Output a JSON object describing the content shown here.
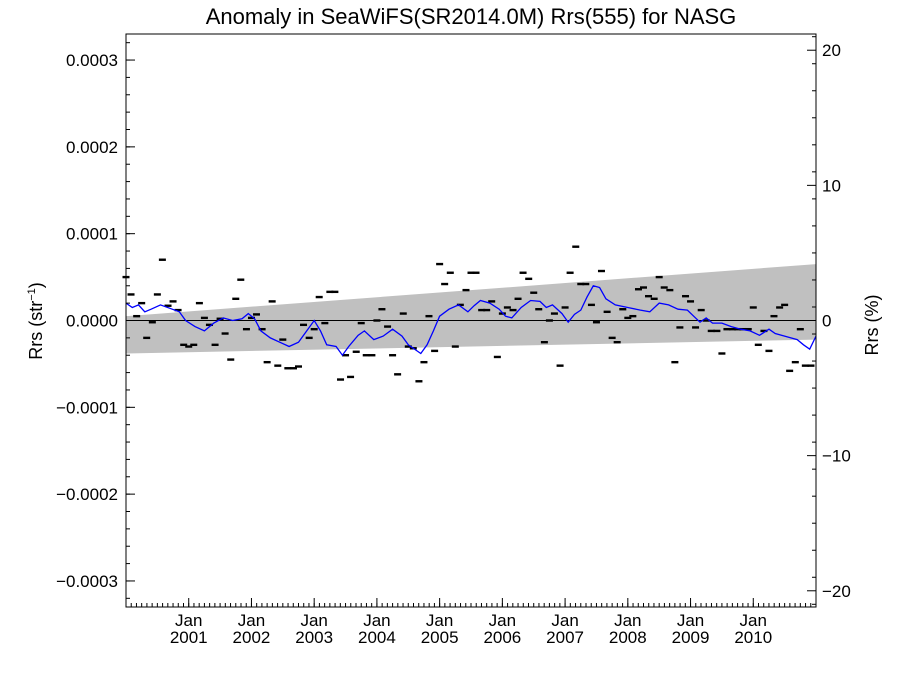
{
  "chart_data": {
    "type": "scatter",
    "title": "Anomaly in SeaWiFS(SR2014.0M) Rrs(555) for NASG",
    "ylabel": "Rrs (str",
    "ylabel_sup": "−1",
    "ylabel_close": ")",
    "y2label": "Rrs (%)",
    "ylim": [
      -0.00033,
      0.00033
    ],
    "y2lim": [
      -21.2,
      21.2
    ],
    "xlim": [
      2000.0,
      2011.0
    ],
    "grid": false,
    "yticks": [
      {
        "v": 0.0003,
        "label": "0.0003"
      },
      {
        "v": 0.0002,
        "label": "0.0002"
      },
      {
        "v": 0.0001,
        "label": "0.0001"
      },
      {
        "v": 0.0,
        "label": "0.0000"
      },
      {
        "v": -0.0001,
        "label": "−0.0001"
      },
      {
        "v": -0.0002,
        "label": "−0.0002"
      },
      {
        "v": -0.0003,
        "label": "−0.0003"
      }
    ],
    "y2ticks": [
      {
        "v": 20,
        "label": "20"
      },
      {
        "v": 10,
        "label": "10"
      },
      {
        "v": 0,
        "label": "0"
      },
      {
        "v": -10,
        "label": "−10"
      },
      {
        "v": -20,
        "label": "−20"
      }
    ],
    "xticks": [
      {
        "t": 2001.0,
        "month": "Jan",
        "year": "2001"
      },
      {
        "t": 2002.0,
        "month": "Jan",
        "year": "2002"
      },
      {
        "t": 2003.0,
        "month": "Jan",
        "year": "2003"
      },
      {
        "t": 2004.0,
        "month": "Jan",
        "year": "2004"
      },
      {
        "t": 2005.0,
        "month": "Jan",
        "year": "2005"
      },
      {
        "t": 2006.0,
        "month": "Jan",
        "year": "2006"
      },
      {
        "t": 2007.0,
        "month": "Jan",
        "year": "2007"
      },
      {
        "t": 2008.0,
        "month": "Jan",
        "year": "2008"
      },
      {
        "t": 2009.0,
        "month": "Jan",
        "year": "2009"
      },
      {
        "t": 2010.0,
        "month": "Jan",
        "year": "2010"
      }
    ],
    "uncertainty_band": {
      "color": "#c0c0c0",
      "upper": [
        [
          2000.0,
          5e-06
        ],
        [
          2011.0,
          6.5e-05
        ]
      ],
      "lower": [
        [
          2000.0,
          -3.8e-05
        ],
        [
          2011.0,
          -2.2e-05
        ]
      ]
    },
    "zero_line": 0.0,
    "series": [
      {
        "kind": "monthly-points",
        "color": "#000000",
        "points": [
          [
            2000.0,
            5e-05
          ],
          [
            2000.08,
            3e-05
          ],
          [
            2000.17,
            5e-06
          ],
          [
            2000.25,
            2e-05
          ],
          [
            2000.33,
            -2e-05
          ],
          [
            2000.42,
            -2e-06
          ],
          [
            2000.5,
            3e-05
          ],
          [
            2000.58,
            7e-05
          ],
          [
            2000.67,
            1.7e-05
          ],
          [
            2000.75,
            2.2e-05
          ],
          [
            2000.83,
            1.2e-05
          ],
          [
            2000.92,
            -2.8e-05
          ],
          [
            2001.0,
            -3e-05
          ],
          [
            2001.08,
            -2.8e-05
          ],
          [
            2001.17,
            2e-05
          ],
          [
            2001.25,
            3e-06
          ],
          [
            2001.33,
            -5e-06
          ],
          [
            2001.42,
            -2.8e-05
          ],
          [
            2001.5,
            2e-06
          ],
          [
            2001.58,
            -1.5e-05
          ],
          [
            2001.67,
            -4.5e-05
          ],
          [
            2001.75,
            2.5e-05
          ],
          [
            2001.83,
            4.7e-05
          ],
          [
            2001.92,
            -1e-05
          ],
          [
            2002.0,
            3e-06
          ],
          [
            2002.08,
            7e-06
          ],
          [
            2002.17,
            -1e-05
          ],
          [
            2002.25,
            -4.8e-05
          ],
          [
            2002.33,
            2.2e-05
          ],
          [
            2002.42,
            -5.2e-05
          ],
          [
            2002.5,
            -2.2e-05
          ],
          [
            2002.58,
            -5.5e-05
          ],
          [
            2002.67,
            -5.5e-05
          ],
          [
            2002.75,
            -5.3e-05
          ],
          [
            2002.83,
            -5e-06
          ],
          [
            2002.92,
            -2e-05
          ],
          [
            2003.0,
            -1e-05
          ],
          [
            2003.08,
            2.7e-05
          ],
          [
            2003.17,
            -3e-06
          ],
          [
            2003.25,
            3.3e-05
          ],
          [
            2003.33,
            3.3e-05
          ],
          [
            2003.42,
            -6.8e-05
          ],
          [
            2003.5,
            -4e-05
          ],
          [
            2003.58,
            -6.5e-05
          ],
          [
            2003.67,
            -3.6e-05
          ],
          [
            2003.75,
            -3e-06
          ],
          [
            2003.83,
            -4e-05
          ],
          [
            2003.92,
            -4e-05
          ],
          [
            2004.0,
            0.0
          ],
          [
            2004.08,
            1.3e-05
          ],
          [
            2004.17,
            -7e-06
          ],
          [
            2004.25,
            -4e-05
          ],
          [
            2004.33,
            -6.2e-05
          ],
          [
            2004.42,
            8e-06
          ],
          [
            2004.5,
            -3e-05
          ],
          [
            2004.58,
            -3.2e-05
          ],
          [
            2004.67,
            -7e-05
          ],
          [
            2004.75,
            -4.8e-05
          ],
          [
            2004.83,
            5e-06
          ],
          [
            2004.92,
            -3.5e-05
          ],
          [
            2005.0,
            6.5e-05
          ],
          [
            2005.08,
            4.2e-05
          ],
          [
            2005.17,
            5.5e-05
          ],
          [
            2005.25,
            -3e-05
          ],
          [
            2005.33,
            1.8e-05
          ],
          [
            2005.42,
            3.5e-05
          ],
          [
            2005.5,
            5.5e-05
          ],
          [
            2005.58,
            5.5e-05
          ],
          [
            2005.67,
            1.2e-05
          ],
          [
            2005.75,
            1.2e-05
          ],
          [
            2005.83,
            2.2e-05
          ],
          [
            2005.92,
            -4.2e-05
          ],
          [
            2006.0,
            8e-06
          ],
          [
            2006.08,
            1.5e-05
          ],
          [
            2006.17,
            1.2e-05
          ],
          [
            2006.25,
            2.5e-05
          ],
          [
            2006.33,
            5.5e-05
          ],
          [
            2006.42,
            4.8e-05
          ],
          [
            2006.5,
            3.2e-05
          ],
          [
            2006.58,
            1.3e-05
          ],
          [
            2006.67,
            -2.5e-05
          ],
          [
            2006.75,
            0.0
          ],
          [
            2006.83,
            8e-06
          ],
          [
            2006.92,
            -5.2e-05
          ],
          [
            2007.0,
            1.5e-05
          ],
          [
            2007.08,
            5.5e-05
          ],
          [
            2007.17,
            8.5e-05
          ],
          [
            2007.25,
            4.2e-05
          ],
          [
            2007.33,
            4.2e-05
          ],
          [
            2007.42,
            1.8e-05
          ],
          [
            2007.5,
            -2e-06
          ],
          [
            2007.58,
            5.7e-05
          ],
          [
            2007.67,
            1e-05
          ],
          [
            2007.75,
            -2e-05
          ],
          [
            2007.83,
            -2.5e-05
          ],
          [
            2007.92,
            1.3e-05
          ],
          [
            2008.0,
            3e-06
          ],
          [
            2008.08,
            5e-06
          ],
          [
            2008.17,
            3.6e-05
          ],
          [
            2008.25,
            3.8e-05
          ],
          [
            2008.33,
            2.8e-05
          ],
          [
            2008.42,
            2.5e-05
          ],
          [
            2008.5,
            5e-05
          ],
          [
            2008.58,
            3.8e-05
          ],
          [
            2008.67,
            3.5e-05
          ],
          [
            2008.75,
            -4.8e-05
          ],
          [
            2008.83,
            -8e-06
          ],
          [
            2008.92,
            2.8e-05
          ],
          [
            2009.0,
            2.2e-05
          ],
          [
            2009.08,
            -8e-06
          ],
          [
            2009.17,
            1.2e-05
          ],
          [
            2009.25,
            0.0
          ],
          [
            2009.33,
            -1.2e-05
          ],
          [
            2009.42,
            -1.2e-05
          ],
          [
            2009.5,
            -3.8e-05
          ],
          [
            2009.58,
            -1e-05
          ],
          [
            2009.67,
            -1e-05
          ],
          [
            2009.75,
            -1e-05
          ],
          [
            2009.83,
            -1e-05
          ],
          [
            2009.92,
            -1e-05
          ],
          [
            2010.0,
            1.5e-05
          ],
          [
            2010.08,
            -2.8e-05
          ],
          [
            2010.17,
            -1.2e-05
          ],
          [
            2010.25,
            -3.5e-05
          ],
          [
            2010.33,
            5e-06
          ],
          [
            2010.42,
            1.5e-05
          ],
          [
            2010.5,
            1.8e-05
          ],
          [
            2010.58,
            -5.8e-05
          ],
          [
            2010.67,
            -4.8e-05
          ],
          [
            2010.75,
            -1e-05
          ],
          [
            2010.83,
            -5.2e-05
          ],
          [
            2010.92,
            -5.2e-05
          ]
        ]
      },
      {
        "kind": "running-mean",
        "color": "#0000ff",
        "points": [
          [
            2000.0,
            2e-05
          ],
          [
            2000.1,
            1.5e-05
          ],
          [
            2000.2,
            1.8e-05
          ],
          [
            2000.3,
            1e-05
          ],
          [
            2000.4,
            1.3e-05
          ],
          [
            2000.55,
            1.8e-05
          ],
          [
            2000.7,
            1.4e-05
          ],
          [
            2000.85,
            1e-05
          ],
          [
            2000.95,
            0.0
          ],
          [
            2001.1,
            -7e-06
          ],
          [
            2001.25,
            -1.2e-05
          ],
          [
            2001.4,
            -3e-06
          ],
          [
            2001.55,
            3e-06
          ],
          [
            2001.7,
            0.0
          ],
          [
            2001.85,
            2e-06
          ],
          [
            2001.95,
            8e-06
          ],
          [
            2002.05,
            2e-06
          ],
          [
            2002.15,
            -1.2e-05
          ],
          [
            2002.3,
            -2e-05
          ],
          [
            2002.45,
            -2.5e-05
          ],
          [
            2002.6,
            -3e-05
          ],
          [
            2002.75,
            -2.5e-05
          ],
          [
            2002.9,
            -1e-05
          ],
          [
            2003.0,
            0.0
          ],
          [
            2003.1,
            -1.2e-05
          ],
          [
            2003.2,
            -2.8e-05
          ],
          [
            2003.35,
            -3e-05
          ],
          [
            2003.45,
            -4e-05
          ],
          [
            2003.55,
            -3e-05
          ],
          [
            2003.7,
            -1.7e-05
          ],
          [
            2003.8,
            -1.2e-05
          ],
          [
            2003.95,
            -2.2e-05
          ],
          [
            2004.1,
            -1.8e-05
          ],
          [
            2004.25,
            -1e-05
          ],
          [
            2004.4,
            -1.8e-05
          ],
          [
            2004.5,
            -2.8e-05
          ],
          [
            2004.6,
            -3.3e-05
          ],
          [
            2004.7,
            -3.8e-05
          ],
          [
            2004.8,
            -2.8e-05
          ],
          [
            2004.9,
            -1.2e-05
          ],
          [
            2005.0,
            5e-06
          ],
          [
            2005.15,
            1.3e-05
          ],
          [
            2005.3,
            1.8e-05
          ],
          [
            2005.45,
            1e-05
          ],
          [
            2005.55,
            1.7e-05
          ],
          [
            2005.65,
            2.3e-05
          ],
          [
            2005.8,
            2e-05
          ],
          [
            2005.95,
            1.3e-05
          ],
          [
            2006.05,
            5e-06
          ],
          [
            2006.15,
            3e-06
          ],
          [
            2006.3,
            1.5e-05
          ],
          [
            2006.45,
            2.3e-05
          ],
          [
            2006.6,
            2.2e-05
          ],
          [
            2006.7,
            1.5e-05
          ],
          [
            2006.8,
            1.8e-05
          ],
          [
            2006.95,
            8e-06
          ],
          [
            2007.05,
            -2e-06
          ],
          [
            2007.15,
            7e-06
          ],
          [
            2007.25,
            1.2e-05
          ],
          [
            2007.35,
            2.7e-05
          ],
          [
            2007.45,
            4e-05
          ],
          [
            2007.55,
            3.8e-05
          ],
          [
            2007.65,
            2.5e-05
          ],
          [
            2007.8,
            1.8e-05
          ],
          [
            2008.0,
            1.5e-05
          ],
          [
            2008.2,
            1.2e-05
          ],
          [
            2008.35,
            1e-05
          ],
          [
            2008.5,
            2e-05
          ],
          [
            2008.65,
            1.8e-05
          ],
          [
            2008.8,
            1.3e-05
          ],
          [
            2008.95,
            1.2e-05
          ],
          [
            2009.05,
            5e-06
          ],
          [
            2009.15,
            -2e-06
          ],
          [
            2009.25,
            3e-06
          ],
          [
            2009.35,
            -3e-06
          ],
          [
            2009.5,
            -3e-06
          ],
          [
            2009.65,
            -7e-06
          ],
          [
            2009.8,
            -1e-05
          ],
          [
            2009.95,
            -1.2e-05
          ],
          [
            2010.1,
            -1.7e-05
          ],
          [
            2010.25,
            -1e-05
          ],
          [
            2010.35,
            -1.5e-05
          ],
          [
            2010.5,
            -1.8e-05
          ],
          [
            2010.6,
            -2e-05
          ],
          [
            2010.7,
            -2.2e-05
          ],
          [
            2010.8,
            -2.8e-05
          ],
          [
            2010.9,
            -3.3e-05
          ],
          [
            2011.0,
            -1.8e-05
          ]
        ]
      }
    ]
  }
}
